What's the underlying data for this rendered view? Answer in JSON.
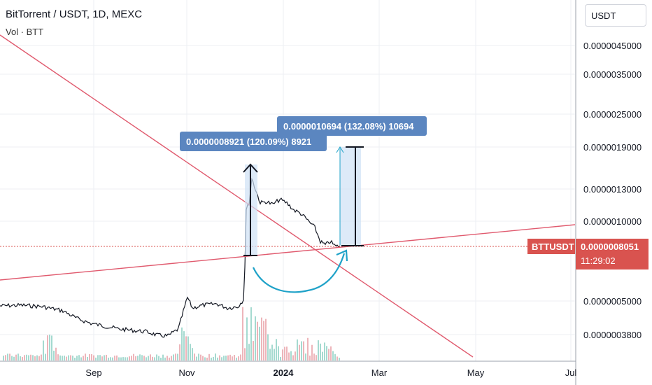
{
  "header": {
    "title": "BitTorrent / USDT, 1D, MEXC",
    "indicator": "Vol · BTT"
  },
  "currency_button": "USDT",
  "price_tag": {
    "symbol": "BTTUSDT",
    "price": "0.0000008051",
    "countdown": "11:29:02"
  },
  "callouts": [
    {
      "text": "0.0000008921 (120.09%) 8921"
    },
    {
      "text": "0.0000010694 (132.08%) 10694"
    }
  ],
  "colors": {
    "trendline": "#e05a6e",
    "callout_bg": "#5b86c0",
    "measure_fill": "#cfe1f5",
    "curve": "#1fa2c8",
    "price_tag": "#d9534f",
    "grid": "#eceff3"
  },
  "chart_data": {
    "type": "candlestick",
    "y_scale": "log",
    "y_ticks": [
      "0.0000045000",
      "0.0000035000",
      "0.0000025000",
      "0.0000019000",
      "0.0000013000",
      "0.0000010000",
      "0.0000005000",
      "0.0000003800"
    ],
    "x_ticks": [
      "Sep",
      "Nov",
      "2024",
      "Mar",
      "May",
      "Jul"
    ]
  }
}
